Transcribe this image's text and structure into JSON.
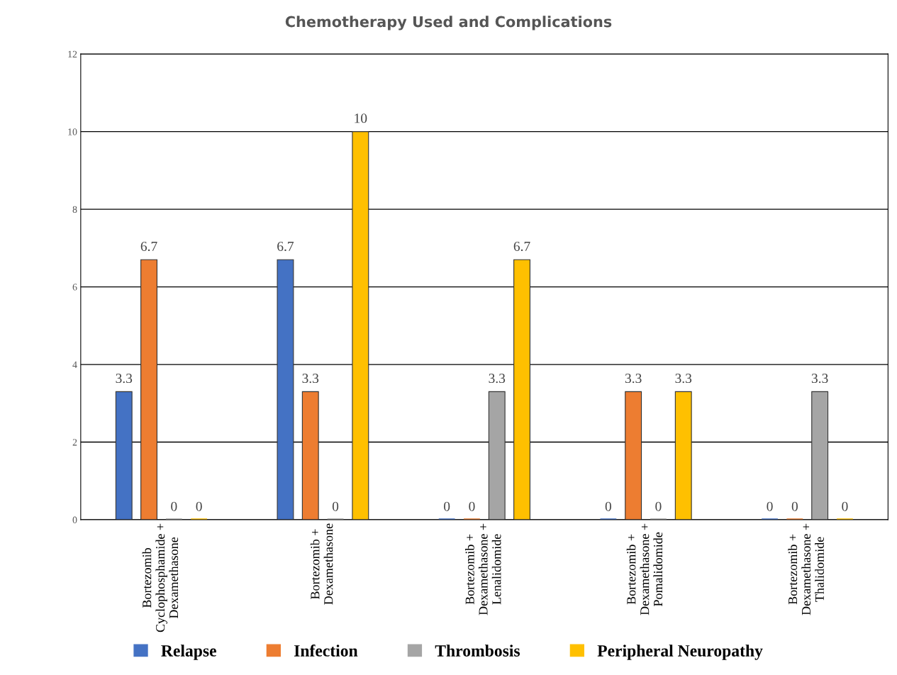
{
  "chart_data": {
    "type": "bar",
    "title": "Chemotherapy Used and Complications",
    "categories": [
      "Bortezomib\nCyclophosphamide +\nDexamethasone",
      "Bortezomib +\nDexamethasone",
      "Bortezomib +\nDexamethasone +\nLenalidomide",
      "Bortezomib +\nDexamethasone +\nPomalidomide",
      "Bortezomib +\nDexamethasone +\nThalidomide"
    ],
    "series": [
      {
        "name": "Relapse",
        "color": "#4472c4",
        "values": [
          3.3,
          6.7,
          0,
          0,
          0
        ]
      },
      {
        "name": "Infection",
        "color": "#ed7d31",
        "values": [
          6.7,
          3.3,
          0,
          3.3,
          0
        ]
      },
      {
        "name": "Thrombosis",
        "color": "#a5a5a5",
        "values": [
          0,
          0,
          3.3,
          0,
          3.3
        ]
      },
      {
        "name": "Peripheral Neuropathy",
        "color": "#ffc000",
        "values": [
          0,
          10,
          6.7,
          3.3,
          0
        ]
      }
    ],
    "ylim": [
      0,
      12
    ],
    "yticks": [
      0,
      2,
      4,
      6,
      8,
      10,
      12
    ],
    "grid": "y",
    "data_labels": true,
    "legend": "bottom"
  }
}
